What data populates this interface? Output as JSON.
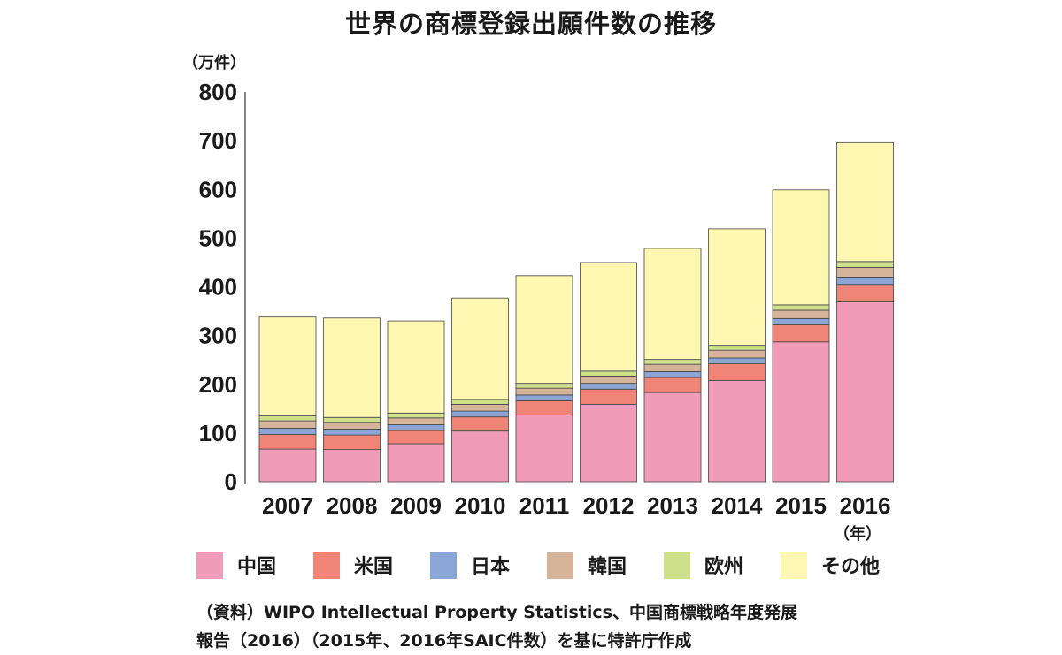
{
  "chart_data": {
    "type": "bar",
    "stacked": true,
    "title": "世界の商標登録出願件数の推移",
    "ylabel": "（万件）",
    "xlabel": "（年）",
    "ylim": [
      0,
      800
    ],
    "yticks": [
      0,
      100,
      200,
      300,
      400,
      500,
      600,
      700,
      800
    ],
    "categories": [
      "2007",
      "2008",
      "2009",
      "2010",
      "2011",
      "2012",
      "2013",
      "2014",
      "2015",
      "2016"
    ],
    "grid": false,
    "legend_position": "bottom",
    "series": [
      {
        "name": "中国",
        "color": "#f09cb9",
        "values": [
          67,
          66,
          78,
          104,
          137,
          159,
          183,
          208,
          287,
          369
        ]
      },
      {
        "name": "米国",
        "color": "#f08577",
        "values": [
          30,
          30,
          27,
          29,
          29,
          31,
          31,
          34,
          35,
          36
        ]
      },
      {
        "name": "日本",
        "color": "#8ba5d7",
        "values": [
          13,
          12,
          12,
          12,
          12,
          12,
          12,
          12,
          13,
          15
        ]
      },
      {
        "name": "韓国",
        "color": "#d6b49a",
        "values": [
          15,
          14,
          14,
          14,
          14,
          15,
          15,
          16,
          17,
          20
        ]
      },
      {
        "name": "欧州",
        "color": "#cfe08b",
        "values": [
          10,
          10,
          10,
          10,
          10,
          10,
          10,
          10,
          11,
          12
        ]
      },
      {
        "name": "その他",
        "color": "#fdf7b1",
        "values": [
          203,
          204,
          189,
          208,
          221,
          223,
          228,
          239,
          236,
          244
        ]
      }
    ]
  },
  "source_lines": [
    "（資料）WIPO Intellectual Property Statistics、中国商標戦略年度発展",
    "報告（2016）（2015年、2016年SAIC件数）を基に特許庁作成"
  ]
}
